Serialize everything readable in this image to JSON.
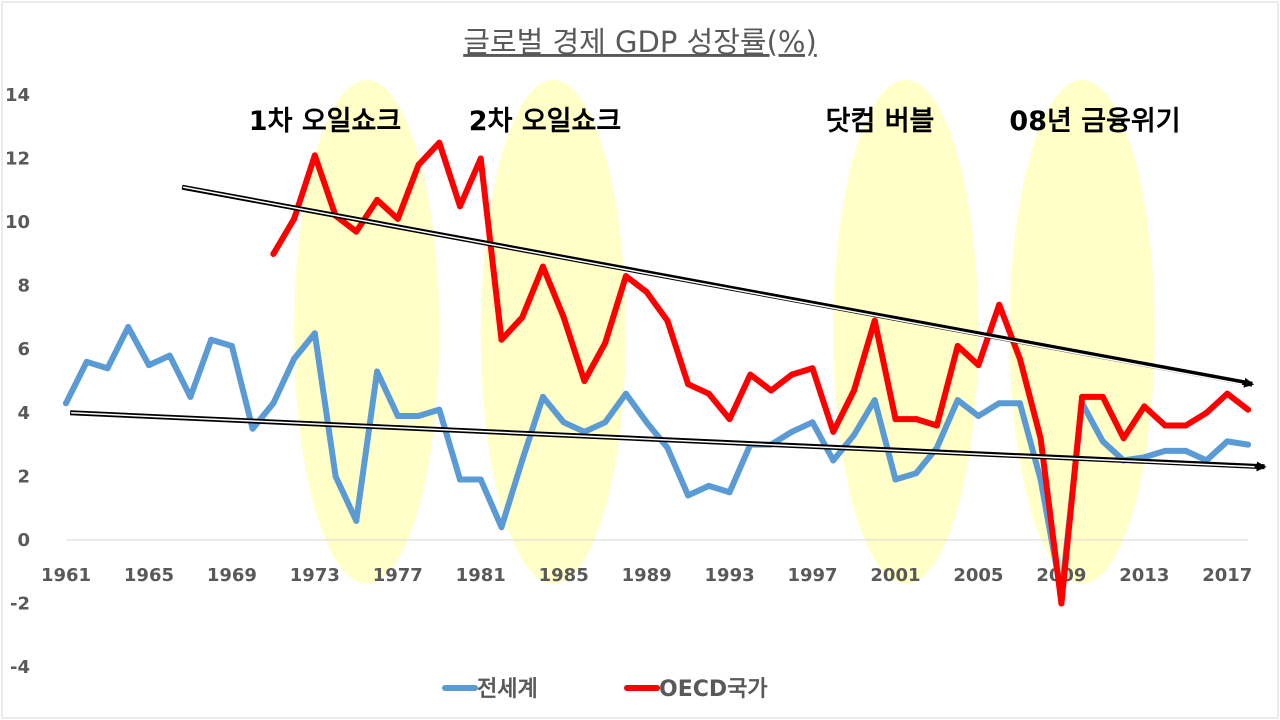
{
  "chart_data": {
    "type": "line",
    "title": "글로벌 경제 GDP 성장률(%)",
    "xlabel": "",
    "ylabel": "",
    "ylim": [
      -4,
      14
    ],
    "yticks": [
      "14",
      "12",
      "10",
      "8",
      "6",
      "4",
      "2",
      "0",
      "-2",
      "-4"
    ],
    "xticks": [
      "1961",
      "1965",
      "1969",
      "1973",
      "1977",
      "1981",
      "1985",
      "1989",
      "1993",
      "1997",
      "2001",
      "2005",
      "2009",
      "2013",
      "2017"
    ],
    "x": [
      1961,
      1962,
      1963,
      1964,
      1965,
      1966,
      1967,
      1968,
      1969,
      1970,
      1971,
      1972,
      1973,
      1974,
      1975,
      1976,
      1977,
      1978,
      1979,
      1980,
      1981,
      1982,
      1983,
      1984,
      1985,
      1986,
      1987,
      1988,
      1989,
      1990,
      1991,
      1992,
      1993,
      1994,
      1995,
      1996,
      1997,
      1998,
      1999,
      2000,
      2001,
      2002,
      2003,
      2004,
      2005,
      2006,
      2007,
      2008,
      2009,
      2010,
      2011,
      2012,
      2013,
      2014,
      2015,
      2016,
      2017,
      2018
    ],
    "legend_position": "bottom",
    "grid": false,
    "series": [
      {
        "name": "전세계",
        "color": "#5B9BD5",
        "values": [
          4.3,
          5.6,
          5.4,
          6.7,
          5.5,
          5.8,
          4.5,
          6.3,
          6.1,
          3.5,
          4.3,
          5.7,
          6.5,
          2.0,
          0.6,
          5.3,
          3.9,
          3.9,
          4.1,
          1.9,
          1.9,
          0.4,
          2.5,
          4.5,
          3.7,
          3.4,
          3.7,
          4.6,
          3.7,
          2.9,
          1.4,
          1.7,
          1.5,
          3.0,
          3.0,
          3.4,
          3.7,
          2.5,
          3.3,
          4.4,
          1.9,
          2.1,
          2.9,
          4.4,
          3.9,
          4.3,
          4.3,
          1.9,
          -1.7,
          4.3,
          3.1,
          2.5,
          2.6,
          2.8,
          2.8,
          2.5,
          3.1,
          3.0
        ]
      },
      {
        "name": "OECD국가",
        "color": "#FF0000",
        "values": [
          null,
          null,
          null,
          null,
          null,
          null,
          null,
          null,
          null,
          null,
          9.0,
          10.1,
          12.1,
          10.2,
          9.7,
          10.7,
          10.1,
          11.8,
          12.5,
          10.5,
          12.0,
          6.3,
          7.0,
          8.6,
          7.0,
          5.0,
          6.2,
          8.3,
          7.8,
          6.9,
          4.9,
          4.6,
          3.8,
          5.2,
          4.7,
          5.2,
          5.4,
          3.4,
          4.7,
          6.9,
          3.8,
          3.8,
          3.6,
          6.1,
          5.5,
          7.4,
          5.7,
          3.2,
          -2.0,
          4.5,
          4.5,
          3.2,
          4.2,
          3.6,
          3.6,
          4.0,
          4.6,
          4.1
        ]
      }
    ],
    "highlights": [
      {
        "label": "1차 오일쇼크",
        "from": 1972.0,
        "to": 1979.0
      },
      {
        "label": "2차 오일쇼크",
        "from": 1981.0,
        "to": 1988.0
      },
      {
        "label": "닷컴 버블",
        "from": 1998.0,
        "to": 2005.0
      },
      {
        "label": "08년 금융위기",
        "from": 2006.5,
        "to": 2013.5
      }
    ],
    "trend_arrows": [
      {
        "from": [
          1966.6,
          11.1
        ],
        "to": [
          2018.2,
          4.9
        ]
      },
      {
        "from": [
          1961.2,
          4.0
        ],
        "to": [
          2018.8,
          2.3
        ]
      }
    ]
  }
}
